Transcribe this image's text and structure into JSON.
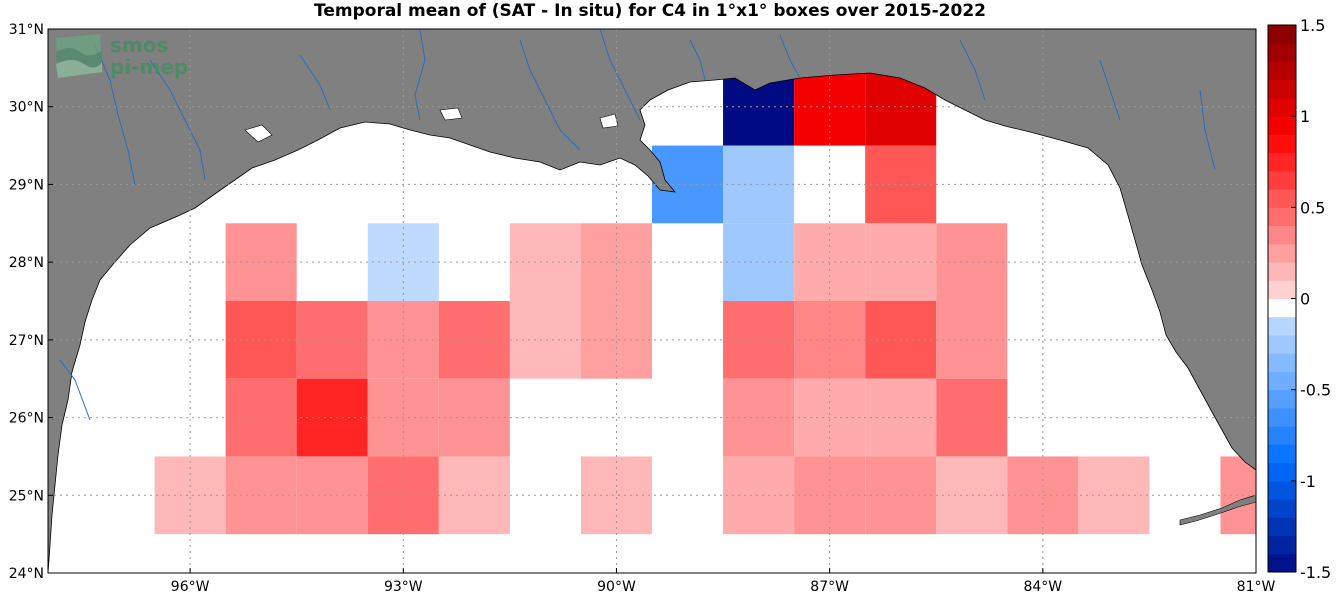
{
  "title": "Temporal mean of (SAT - In situ) for C4 in 1°x1° boxes over 2015-2022",
  "logo": {
    "line1": "smos",
    "line2": "pi-mep"
  },
  "colors": {
    "land": "#808080",
    "ocean": "#ffffff",
    "rivers": "#2a6fbf",
    "grid": "#999999"
  },
  "chart_data": {
    "type": "heatmap",
    "title": "Temporal mean of (SAT - In situ) for C4 in 1°x1° boxes over 2015-2022",
    "lon_range": [
      -98,
      -81
    ],
    "lat_range": [
      24,
      31
    ],
    "x_ticks": [
      {
        "value": -96,
        "label": "96°W"
      },
      {
        "value": -93,
        "label": "93°W"
      },
      {
        "value": -90,
        "label": "90°W"
      },
      {
        "value": -87,
        "label": "87°W"
      },
      {
        "value": -84,
        "label": "84°W"
      },
      {
        "value": -81,
        "label": "81°W"
      }
    ],
    "y_ticks": [
      {
        "value": 24,
        "label": "24°N"
      },
      {
        "value": 25,
        "label": "25°N"
      },
      {
        "value": 26,
        "label": "26°N"
      },
      {
        "value": 27,
        "label": "27°N"
      },
      {
        "value": 28,
        "label": "28°N"
      },
      {
        "value": 29,
        "label": "29°N"
      },
      {
        "value": 30,
        "label": "30°N"
      },
      {
        "value": 31,
        "label": "31°N"
      }
    ],
    "grid": true,
    "colorbar": {
      "range": [
        -1.5,
        1.5
      ],
      "step": 0.1,
      "placement": "right",
      "ticks": [
        {
          "value": 1.5,
          "label": "1.5"
        },
        {
          "value": 1,
          "label": "1"
        },
        {
          "value": 0.5,
          "label": "0.5"
        },
        {
          "value": 0,
          "label": "0"
        },
        {
          "value": -0.5,
          "label": "-0.5"
        },
        {
          "value": -1,
          "label": "-1"
        },
        {
          "value": -1.5,
          "label": "-1.5"
        }
      ]
    },
    "cells": [
      {
        "lon": -88,
        "lat": 30,
        "value": -1.5
      },
      {
        "lon": -87,
        "lat": 30,
        "value": 0.95
      },
      {
        "lon": -86,
        "lat": 30,
        "value": 1.05
      },
      {
        "lon": -89,
        "lat": 29,
        "value": -0.6
      },
      {
        "lon": -88,
        "lat": 29,
        "value": -0.25
      },
      {
        "lon": -86,
        "lat": 29,
        "value": 0.55
      },
      {
        "lon": -95,
        "lat": 28,
        "value": 0.3
      },
      {
        "lon": -93,
        "lat": 28,
        "value": -0.12
      },
      {
        "lon": -91,
        "lat": 28,
        "value": 0.15
      },
      {
        "lon": -90,
        "lat": 28,
        "value": 0.25
      },
      {
        "lon": -88,
        "lat": 28,
        "value": -0.25
      },
      {
        "lon": -87,
        "lat": 28,
        "value": 0.2
      },
      {
        "lon": -86,
        "lat": 28,
        "value": 0.2
      },
      {
        "lon": -85,
        "lat": 28,
        "value": 0.3
      },
      {
        "lon": -95,
        "lat": 27,
        "value": 0.55
      },
      {
        "lon": -94,
        "lat": 27,
        "value": 0.45
      },
      {
        "lon": -93,
        "lat": 27,
        "value": 0.3
      },
      {
        "lon": -92,
        "lat": 27,
        "value": 0.45
      },
      {
        "lon": -91,
        "lat": 27,
        "value": 0.15
      },
      {
        "lon": -90,
        "lat": 27,
        "value": 0.25
      },
      {
        "lon": -88,
        "lat": 27,
        "value": 0.45
      },
      {
        "lon": -87,
        "lat": 27,
        "value": 0.35
      },
      {
        "lon": -86,
        "lat": 27,
        "value": 0.55
      },
      {
        "lon": -85,
        "lat": 27,
        "value": 0.3
      },
      {
        "lon": -95,
        "lat": 26,
        "value": 0.45
      },
      {
        "lon": -94,
        "lat": 26,
        "value": 0.75
      },
      {
        "lon": -93,
        "lat": 26,
        "value": 0.3
      },
      {
        "lon": -92,
        "lat": 26,
        "value": 0.3
      },
      {
        "lon": -88,
        "lat": 26,
        "value": 0.3
      },
      {
        "lon": -87,
        "lat": 26,
        "value": 0.2
      },
      {
        "lon": -86,
        "lat": 26,
        "value": 0.2
      },
      {
        "lon": -85,
        "lat": 26,
        "value": 0.45
      },
      {
        "lon": -96,
        "lat": 25,
        "value": 0.15
      },
      {
        "lon": -95,
        "lat": 25,
        "value": 0.3
      },
      {
        "lon": -94,
        "lat": 25,
        "value": 0.3
      },
      {
        "lon": -93,
        "lat": 25,
        "value": 0.45
      },
      {
        "lon": -92,
        "lat": 25,
        "value": 0.15
      },
      {
        "lon": -90,
        "lat": 25,
        "value": 0.15
      },
      {
        "lon": -88,
        "lat": 25,
        "value": 0.2
      },
      {
        "lon": -87,
        "lat": 25,
        "value": 0.3
      },
      {
        "lon": -86,
        "lat": 25,
        "value": 0.3
      },
      {
        "lon": -85,
        "lat": 25,
        "value": 0.15
      },
      {
        "lon": -84,
        "lat": 25,
        "value": 0.3
      },
      {
        "lon": -83,
        "lat": 25,
        "value": 0.15
      },
      {
        "lon": -81,
        "lat": 25,
        "value": 0.3
      }
    ]
  }
}
